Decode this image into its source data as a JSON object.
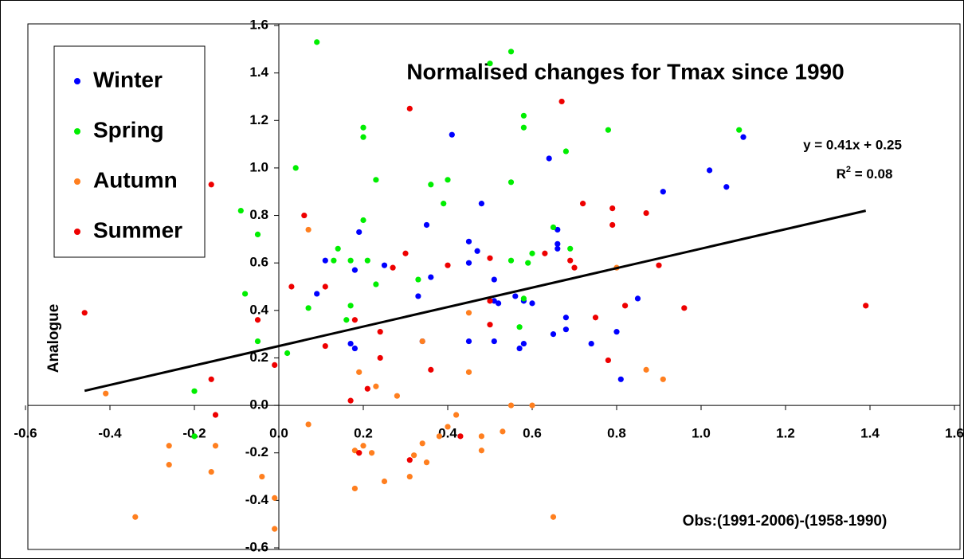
{
  "chart_data": {
    "type": "scatter",
    "title": "Normalised changes for Tmax since 1990",
    "x_label": "Obs:(1991-2006)-(1958-1990)",
    "y_label": "Analogue",
    "xlim": [
      -0.6,
      1.6
    ],
    "ylim": [
      -0.6,
      1.6
    ],
    "xticks": [
      -0.6,
      -0.4,
      -0.2,
      {
        "value": 0,
        "label": "0.0"
      },
      0.2,
      0.4,
      0.6,
      0.8,
      {
        "value": 1,
        "label": "1.0"
      },
      1.2,
      1.4,
      1.6
    ],
    "yticks": [
      -0.6,
      -0.4,
      -0.2,
      {
        "value": 0,
        "label": "0.0"
      },
      0.2,
      0.4,
      0.6,
      0.8,
      {
        "value": 1,
        "label": "1.0"
      },
      1.2,
      1.4,
      1.6
    ],
    "legend_position": "upper left",
    "grid": false,
    "trendline": {
      "equation": "y = 0.41x + 0.25",
      "r2_base": "R",
      "r2_sup": "2",
      "r2_rest": " = 0.08",
      "slope": 0.41,
      "intercept": 0.25,
      "x_range": [
        -0.46,
        1.39
      ],
      "color": "#000000"
    },
    "series": [
      {
        "name": "Winter",
        "color": "#0000ff",
        "x": [
          1.1,
          1.02,
          1.06,
          0.91,
          0.64,
          0.41,
          0.66,
          0.66,
          0.66,
          0.48,
          0.35,
          0.19,
          0.45,
          0.47,
          0.45,
          0.11,
          0.25,
          0.36,
          0.18,
          0.51,
          0.09,
          0.33,
          0.56,
          0.58,
          0.6,
          0.52,
          0.51,
          0.85,
          0.68,
          0.8,
          0.68,
          0.65,
          0.74,
          0.45,
          0.51,
          0.34,
          0.58,
          0.57,
          0.17,
          0.18,
          0.81
        ],
        "values": [
          1.13,
          0.99,
          0.92,
          0.9,
          1.04,
          1.14,
          0.74,
          0.68,
          0.66,
          0.85,
          0.76,
          0.73,
          0.69,
          0.65,
          0.6,
          0.61,
          0.59,
          0.54,
          0.57,
          0.53,
          0.47,
          0.46,
          0.46,
          0.44,
          0.43,
          0.43,
          0.44,
          0.45,
          0.37,
          0.31,
          0.32,
          0.3,
          0.26,
          0.27,
          0.27,
          0.27,
          0.26,
          0.24,
          0.26,
          0.24,
          0.11
        ]
      },
      {
        "name": "Spring",
        "color": "#00ee00",
        "x": [
          0.09,
          0.55,
          0.5,
          0.58,
          0.58,
          0.2,
          0.2,
          0.78,
          1.09,
          0.68,
          0.04,
          0.4,
          0.23,
          0.55,
          0.36,
          0.39,
          -0.09,
          0.2,
          -0.05,
          0.65,
          0.14,
          0.13,
          0.17,
          0.21,
          0.55,
          0.6,
          0.69,
          0.59,
          0.23,
          0.33,
          -0.08,
          0.17,
          0.07,
          0.16,
          0.58,
          0.57,
          -0.05,
          0.02,
          -0.2,
          -0.2
        ],
        "values": [
          1.53,
          1.49,
          1.44,
          1.22,
          1.17,
          1.17,
          1.13,
          1.16,
          1.16,
          1.07,
          1.0,
          0.95,
          0.95,
          0.94,
          0.93,
          0.85,
          0.82,
          0.78,
          0.72,
          0.75,
          0.66,
          0.61,
          0.61,
          0.61,
          0.61,
          0.64,
          0.66,
          0.6,
          0.51,
          0.53,
          0.47,
          0.42,
          0.41,
          0.36,
          0.45,
          0.33,
          0.27,
          0.22,
          0.06,
          -0.13
        ]
      },
      {
        "name": "Autumn",
        "color": "#ff7f1f",
        "x": [
          -0.41,
          0.07,
          0.8,
          0.45,
          0.34,
          0.19,
          0.23,
          0.28,
          0.45,
          0.87,
          0.91,
          0.55,
          0.6,
          0.07,
          -0.26,
          -0.15,
          0.2,
          0.18,
          0.19,
          0.22,
          0.42,
          0.4,
          0.38,
          0.34,
          0.48,
          0.53,
          0.48,
          0.32,
          0.35,
          -0.26,
          -0.16,
          -0.04,
          0.31,
          0.25,
          0.18,
          -0.01,
          -0.34,
          -0.01,
          0.65
        ],
        "values": [
          0.05,
          0.74,
          0.58,
          0.39,
          0.27,
          0.14,
          0.08,
          0.04,
          0.14,
          0.15,
          0.11,
          0.0,
          0.0,
          -0.08,
          -0.17,
          -0.17,
          -0.17,
          -0.19,
          -0.2,
          -0.2,
          -0.04,
          -0.09,
          -0.13,
          -0.16,
          -0.13,
          -0.11,
          -0.19,
          -0.21,
          -0.24,
          -0.25,
          -0.28,
          -0.3,
          -0.3,
          -0.32,
          -0.35,
          -0.39,
          -0.47,
          -0.52,
          -0.47
        ]
      },
      {
        "name": "Summer",
        "color": "#ee0000",
        "x": [
          -0.46,
          -0.16,
          0.31,
          0.67,
          0.72,
          0.79,
          0.87,
          0.06,
          0.79,
          0.3,
          0.5,
          0.63,
          0.69,
          0.7,
          0.4,
          0.27,
          0.03,
          0.11,
          0.9,
          0.5,
          0.82,
          0.96,
          1.39,
          0.75,
          -0.05,
          0.18,
          0.24,
          0.5,
          0.11,
          0.78,
          -0.16,
          0.24,
          0.36,
          -0.01,
          0.21,
          0.17,
          -0.15,
          0.19,
          0.31,
          0.43
        ],
        "values": [
          0.39,
          0.93,
          1.25,
          1.28,
          0.85,
          0.83,
          0.81,
          0.8,
          0.76,
          0.64,
          0.62,
          0.64,
          0.61,
          0.58,
          0.59,
          0.58,
          0.5,
          0.5,
          0.59,
          0.44,
          0.42,
          0.41,
          0.42,
          0.37,
          0.36,
          0.36,
          0.31,
          0.34,
          0.25,
          0.19,
          0.11,
          0.2,
          0.15,
          0.17,
          0.07,
          0.02,
          -0.04,
          -0.2,
          -0.23,
          -0.13
        ]
      }
    ]
  }
}
